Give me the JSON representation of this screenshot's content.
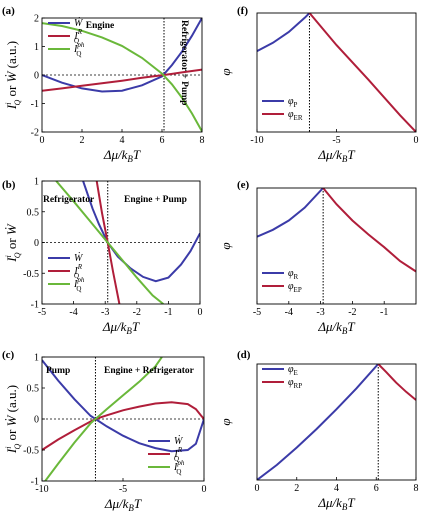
{
  "chart_data": [
    {
      "panel": "(a)",
      "type": "line",
      "xlabel": "Δμ/k_BT",
      "ylabel": "I_Q^i or Ẇ (a.u.)",
      "xlim": [
        0,
        8
      ],
      "ylim": [
        -2,
        2
      ],
      "xticks": [
        "0",
        "2",
        "4",
        "6",
        "8"
      ],
      "yticks": [
        "2",
        "1",
        "0",
        "-1",
        "-2"
      ],
      "regions": [
        "Engine",
        "Refrigerator + Pump"
      ],
      "marker_x": 6.1,
      "legend_position": "top-left",
      "series": [
        {
          "name": "Ẇ",
          "color": "#3b3ba8",
          "x": [
            0,
            1,
            2,
            3,
            4,
            5,
            6,
            6.5,
            7,
            7.5,
            8
          ],
          "y": [
            0,
            -0.27,
            -0.47,
            -0.58,
            -0.55,
            -0.36,
            -0.05,
            0.35,
            0.82,
            1.38,
            2.0
          ]
        },
        {
          "name": "I_Q^R",
          "color": "#b01e3a",
          "x": [
            0,
            1,
            2,
            3,
            4,
            5,
            6,
            6.5,
            7,
            7.5,
            8
          ],
          "y": [
            -0.55,
            -0.47,
            -0.38,
            -0.29,
            -0.2,
            -0.1,
            -0.01,
            0.04,
            0.09,
            0.14,
            0.19
          ]
        },
        {
          "name": "I_Q^ph",
          "color": "#6ab83a",
          "x": [
            0,
            1,
            2,
            3,
            4,
            5,
            6,
            6.5,
            7,
            7.5,
            8
          ],
          "y": [
            1.82,
            1.72,
            1.55,
            1.32,
            1.02,
            0.6,
            0.05,
            -0.33,
            -0.8,
            -1.35,
            -1.98
          ]
        }
      ]
    },
    {
      "panel": "(b)",
      "type": "line",
      "xlabel": "Δμ/k_BT",
      "ylabel": "I_Q^i or Ẇ",
      "xlim": [
        -5,
        0
      ],
      "ylim": [
        -1,
        1
      ],
      "xticks": [
        "-5",
        "-4",
        "-3",
        "-2",
        "-1",
        "0"
      ],
      "yticks": [
        "1",
        "0.5",
        "0",
        "-0.5",
        "-1"
      ],
      "regions": [
        "Refrigerator",
        "Engine + Pump"
      ],
      "marker_x": -2.92,
      "legend_position": "bottom-left",
      "series": [
        {
          "name": "Ẇ",
          "color": "#3b3ba8",
          "x": [
            -3.7,
            -3.4,
            -3.2,
            -2.92,
            -2.6,
            -2.2,
            -1.8,
            -1.4,
            -1.0,
            -0.6,
            -0.3,
            0
          ],
          "y": [
            1.0,
            0.55,
            0.3,
            0.0,
            -0.23,
            -0.42,
            -0.56,
            -0.63,
            -0.57,
            -0.36,
            -0.14,
            0.15
          ]
        },
        {
          "name": "I_Q^R",
          "color": "#b01e3a",
          "x": [
            -3.27,
            -3.1,
            -2.92,
            -2.75,
            -2.55
          ],
          "y": [
            1.0,
            0.48,
            0.0,
            -0.48,
            -1.0
          ]
        },
        {
          "name": "I_Q^ph",
          "color": "#6ab83a",
          "x": [
            -4.55,
            -4.0,
            -3.5,
            -2.92,
            -2.5,
            -2.0,
            -1.5,
            -1.16
          ],
          "y": [
            1.0,
            0.67,
            0.36,
            0.0,
            -0.26,
            -0.57,
            -0.86,
            -1.0
          ]
        }
      ]
    },
    {
      "panel": "(c)",
      "type": "line",
      "xlabel": "Δμ/k_BT",
      "ylabel": "I_Q^i or Ẇ (a.u.)",
      "xlim": [
        -10,
        0
      ],
      "ylim": [
        -1,
        1
      ],
      "xticks": [
        "-10",
        "-5",
        "0"
      ],
      "yticks": [
        "1",
        "0.5",
        "0",
        "-0.5",
        "-1"
      ],
      "regions": [
        "Pump",
        "Engine + Refrigerator"
      ],
      "marker_x": -6.7,
      "legend_position": "bottom-right",
      "series": [
        {
          "name": "Ẇ",
          "color": "#3b3ba8",
          "x": [
            -10,
            -9,
            -8,
            -7,
            -6.7,
            -6,
            -5,
            -4,
            -3,
            -2,
            -1,
            -0.5,
            0
          ],
          "y": [
            0.95,
            0.62,
            0.32,
            0.05,
            0.0,
            -0.12,
            -0.27,
            -0.39,
            -0.47,
            -0.52,
            -0.5,
            -0.4,
            0.0
          ]
        },
        {
          "name": "I_Q^R",
          "color": "#b01e3a",
          "x": [
            -10,
            -9,
            -8,
            -7,
            -6.7,
            -6,
            -5,
            -4,
            -3,
            -2,
            -1,
            -0.5,
            -0.2,
            0
          ],
          "y": [
            -0.5,
            -0.33,
            -0.18,
            -0.04,
            0.0,
            0.06,
            0.14,
            0.2,
            0.25,
            0.27,
            0.24,
            0.16,
            0.06,
            0.0
          ]
        },
        {
          "name": "I_Q^ph",
          "color": "#6ab83a",
          "x": [
            -9.8,
            -9,
            -8,
            -7,
            -6.7,
            -6,
            -5,
            -4,
            -3,
            -2.6
          ],
          "y": [
            -1.0,
            -0.72,
            -0.38,
            -0.07,
            0.0,
            0.16,
            0.38,
            0.6,
            0.85,
            1.0
          ]
        }
      ]
    },
    {
      "panel": "(f)",
      "type": "line",
      "xlabel": "Δμ/k_BT",
      "ylabel": "φ",
      "xlim": [
        -10,
        0
      ],
      "ylim": [
        0,
        1
      ],
      "xticks": [
        "-10",
        "-5",
        "0"
      ],
      "yticks": [],
      "marker_x": -6.7,
      "legend_position": "bottom-left",
      "series": [
        {
          "name": "φ_P",
          "color": "#3b3ba8",
          "x": [
            -10,
            -9,
            -8,
            -7,
            -6.7
          ],
          "y": [
            0.68,
            0.75,
            0.84,
            0.96,
            1.0
          ]
        },
        {
          "name": "φ_ER",
          "color": "#b01e3a",
          "x": [
            -6.7,
            -5,
            -3,
            -1,
            0
          ],
          "y": [
            1.0,
            0.73,
            0.44,
            0.14,
            0.0
          ]
        }
      ]
    },
    {
      "panel": "(e)",
      "type": "line",
      "xlabel": "Δμ/k_BT",
      "ylabel": "φ",
      "xlim": [
        -5,
        0
      ],
      "ylim": [
        0,
        1
      ],
      "xticks": [
        "-5",
        "-4",
        "-3",
        "-2",
        "-1"
      ],
      "yticks": [],
      "marker_x": -2.92,
      "legend_position": "bottom-left",
      "series": [
        {
          "name": "φ_R",
          "color": "#3b3ba8",
          "x": [
            -5,
            -4.5,
            -4,
            -3.5,
            -2.92
          ],
          "y": [
            0.58,
            0.64,
            0.72,
            0.83,
            1.0
          ]
        },
        {
          "name": "φ_EP",
          "color": "#b01e3a",
          "x": [
            -2.92,
            -2.5,
            -2,
            -1.5,
            -1,
            -0.5,
            0
          ],
          "y": [
            1.0,
            0.86,
            0.72,
            0.6,
            0.49,
            0.37,
            0.28
          ]
        }
      ]
    },
    {
      "panel": "(d)",
      "type": "line",
      "xlabel": "Δμ/k_BT",
      "ylabel": "φ",
      "xlim": [
        0,
        8
      ],
      "ylim": [
        0,
        1
      ],
      "xticks": [
        "0",
        "2",
        "4",
        "6",
        "8"
      ],
      "yticks": [],
      "marker_x": 6.1,
      "legend_position": "top-left",
      "series": [
        {
          "name": "φ_E",
          "color": "#3b3ba8",
          "x": [
            0,
            1,
            2,
            3,
            4,
            5,
            6.1
          ],
          "y": [
            0.0,
            0.13,
            0.28,
            0.44,
            0.61,
            0.79,
            1.0
          ]
        },
        {
          "name": "φ_RP",
          "color": "#b01e3a",
          "x": [
            6.1,
            6.5,
            7,
            7.5,
            8
          ],
          "y": [
            1.0,
            0.93,
            0.84,
            0.76,
            0.69
          ]
        }
      ]
    }
  ]
}
